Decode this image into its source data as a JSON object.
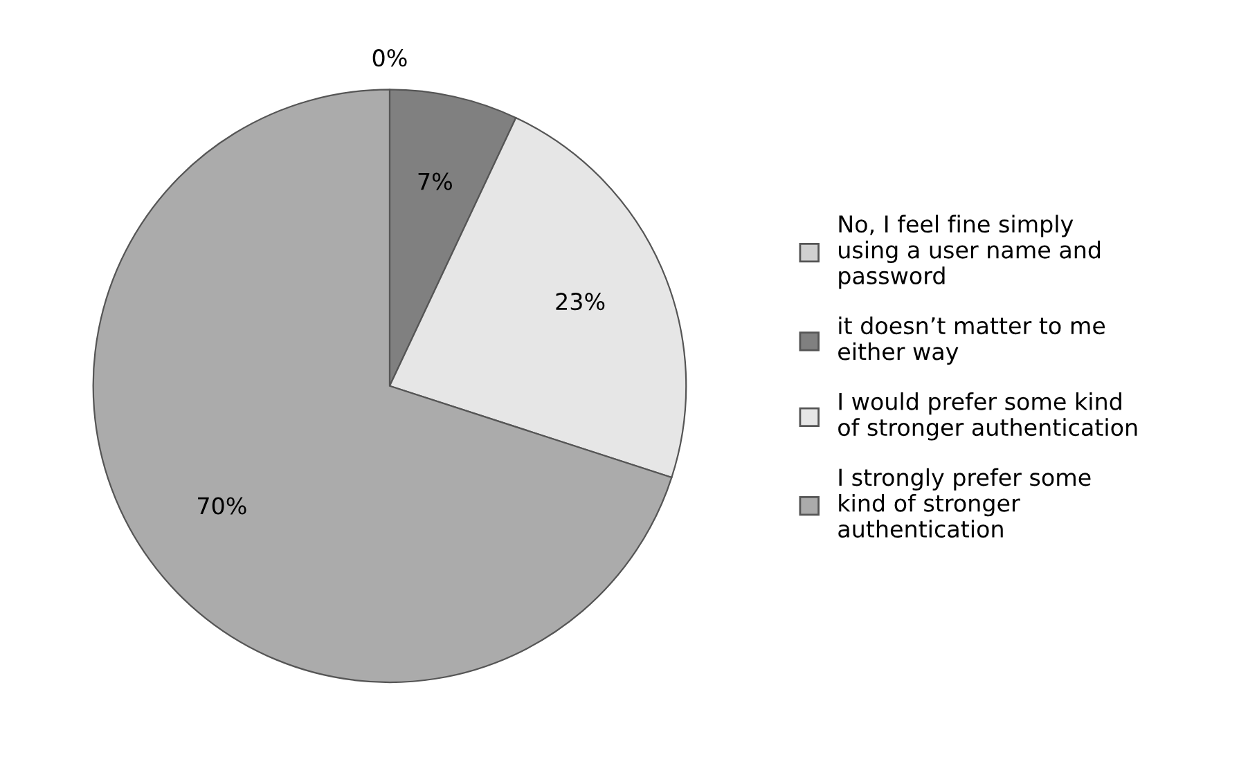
{
  "chart_data": {
    "type": "pie",
    "categories": [
      "No, I feel fine simply using a user name and password",
      "it doesn’t matter to me either way",
      "I would prefer some kind of stronger authentication",
      "I strongly prefer some kind of stronger authentication"
    ],
    "values": [
      0,
      7,
      23,
      70
    ],
    "colors": [
      "#d0d0d0",
      "#808080",
      "#e6e6e6",
      "#ababab"
    ],
    "value_labels": [
      "0%",
      "7%",
      "23%",
      "70%"
    ],
    "legend": "right"
  }
}
